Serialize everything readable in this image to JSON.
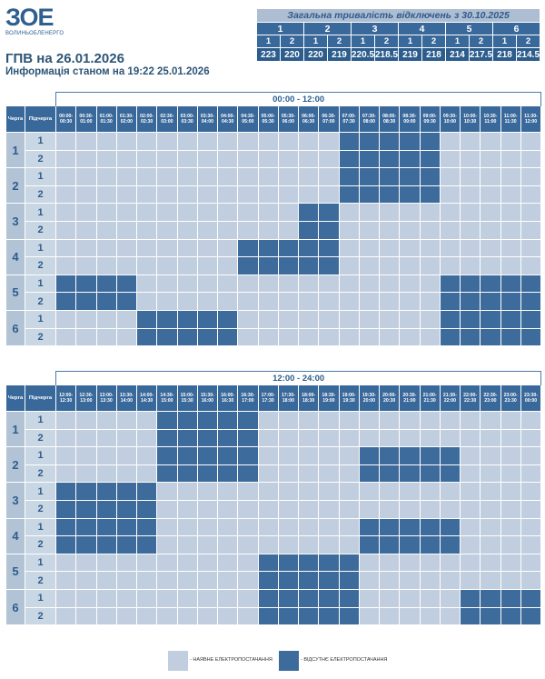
{
  "logo": {
    "mark": "ЗОЕ",
    "sub": "ВОЛИНЬОБЛЕНЕРГО"
  },
  "title": "ГПВ на 26.01.2026",
  "subtitle": "Информація станом на 19:22 25.01.2026",
  "summary": {
    "title": "Загальна тривалість відключень з 30.10.2025",
    "queues": [
      "1",
      "2",
      "3",
      "4",
      "5",
      "6"
    ],
    "subqueues": [
      "1",
      "2",
      "1",
      "2",
      "1",
      "2",
      "1",
      "2",
      "1",
      "2",
      "1",
      "2"
    ],
    "values": [
      "223",
      "220",
      "220",
      "219",
      "220.5",
      "218.5",
      "219",
      "218",
      "214",
      "217.5",
      "218",
      "214.5"
    ]
  },
  "labels": {
    "queue": "Черга",
    "subqueue": "Підчерга"
  },
  "schedules": [
    {
      "range": "00:00 - 12:00",
      "times": [
        "00:00- 00:30",
        "00:30- 01:00",
        "01:00- 01:30",
        "01:30- 02:00",
        "02:00- 02:30",
        "02:30- 03:00",
        "03:00- 03:30",
        "03:30- 04:00",
        "04:00- 04:30",
        "04:30- 05:00",
        "05:00- 05:30",
        "05:30- 06:00",
        "06:00- 06:30",
        "06:30- 07:00",
        "07:00- 07:30",
        "07:30- 08:00",
        "08:00- 08:30",
        "08:30- 09:00",
        "09:00- 09:30",
        "09:30- 10:00",
        "10:00- 10:30",
        "10:30- 11:00",
        "11:00- 11:30",
        "11:30- 12:00"
      ],
      "rows": [
        {
          "queue": "1",
          "sub": "1",
          "off": [
            14,
            15,
            16,
            17,
            18
          ]
        },
        {
          "queue": "1",
          "sub": "2",
          "off": [
            14,
            15,
            16,
            17,
            18
          ]
        },
        {
          "queue": "2",
          "sub": "1",
          "off": [
            14,
            15,
            16,
            17,
            18
          ]
        },
        {
          "queue": "2",
          "sub": "2",
          "off": [
            14,
            15,
            16,
            17,
            18
          ]
        },
        {
          "queue": "3",
          "sub": "1",
          "off": [
            12,
            13
          ]
        },
        {
          "queue": "3",
          "sub": "2",
          "off": [
            12,
            13
          ]
        },
        {
          "queue": "4",
          "sub": "1",
          "off": [
            9,
            10,
            11,
            12,
            13
          ]
        },
        {
          "queue": "4",
          "sub": "2",
          "off": [
            9,
            10,
            11,
            12,
            13
          ]
        },
        {
          "queue": "5",
          "sub": "1",
          "off": [
            0,
            1,
            2,
            3,
            19,
            20,
            21,
            22,
            23
          ]
        },
        {
          "queue": "5",
          "sub": "2",
          "off": [
            0,
            1,
            2,
            3,
            19,
            20,
            21,
            22,
            23
          ]
        },
        {
          "queue": "6",
          "sub": "1",
          "off": [
            4,
            5,
            6,
            7,
            8,
            19,
            20,
            21,
            22,
            23
          ]
        },
        {
          "queue": "6",
          "sub": "2",
          "off": [
            4,
            5,
            6,
            7,
            8,
            19,
            20,
            21,
            22,
            23
          ]
        }
      ]
    },
    {
      "range": "12:00 - 24:00",
      "times": [
        "12:00- 12:30",
        "12:30- 13:00",
        "13:00- 13:30",
        "13:30- 14:00",
        "14:00- 14:30",
        "14:30- 15:00",
        "15:00- 15:30",
        "15:30- 16:00",
        "16:00- 16:30",
        "16:30- 17:00",
        "17:00- 17:30",
        "17:30- 18:00",
        "18:00- 18:30",
        "18:30- 19:00",
        "19:00- 19:30",
        "19:30- 20:00",
        "20:00- 20:30",
        "20:30- 21:00",
        "21:00- 21:30",
        "21:30- 22:00",
        "22:00- 22:30",
        "22:30- 23:00",
        "23:00- 23:30",
        "23:30- 00:00"
      ],
      "rows": [
        {
          "queue": "1",
          "sub": "1",
          "off": [
            5,
            6,
            7,
            8,
            9
          ]
        },
        {
          "queue": "1",
          "sub": "2",
          "off": [
            5,
            6,
            7,
            8,
            9
          ]
        },
        {
          "queue": "2",
          "sub": "1",
          "off": [
            5,
            6,
            7,
            8,
            9,
            15,
            16,
            17,
            18,
            19
          ]
        },
        {
          "queue": "2",
          "sub": "2",
          "off": [
            5,
            6,
            7,
            8,
            9,
            15,
            16,
            17,
            18,
            19
          ]
        },
        {
          "queue": "3",
          "sub": "1",
          "off": [
            0,
            1,
            2,
            3,
            4
          ]
        },
        {
          "queue": "3",
          "sub": "2",
          "off": [
            0,
            1,
            2,
            3,
            4
          ]
        },
        {
          "queue": "4",
          "sub": "1",
          "off": [
            0,
            1,
            2,
            3,
            4,
            15,
            16,
            17,
            18,
            19
          ]
        },
        {
          "queue": "4",
          "sub": "2",
          "off": [
            0,
            1,
            2,
            3,
            4,
            15,
            16,
            17,
            18,
            19
          ]
        },
        {
          "queue": "5",
          "sub": "1",
          "off": [
            10,
            11,
            12,
            13,
            14
          ]
        },
        {
          "queue": "5",
          "sub": "2",
          "off": [
            10,
            11,
            12,
            13,
            14
          ]
        },
        {
          "queue": "6",
          "sub": "1",
          "off": [
            10,
            11,
            12,
            13,
            14,
            20,
            21,
            22,
            23
          ]
        },
        {
          "queue": "6",
          "sub": "2",
          "off": [
            10,
            11,
            12,
            13,
            14,
            20,
            21,
            22,
            23
          ]
        }
      ]
    }
  ],
  "legend": {
    "on_label": "- НАЯВНЕ ЕЛЕКТРОПОСТАЧАННЯ",
    "off_label": "- ВІДСУТНЄ ЕЛЕКТРОПОСТАЧАННЯ",
    "on_color": "#c1cedf",
    "off_color": "#3c6b9c"
  }
}
